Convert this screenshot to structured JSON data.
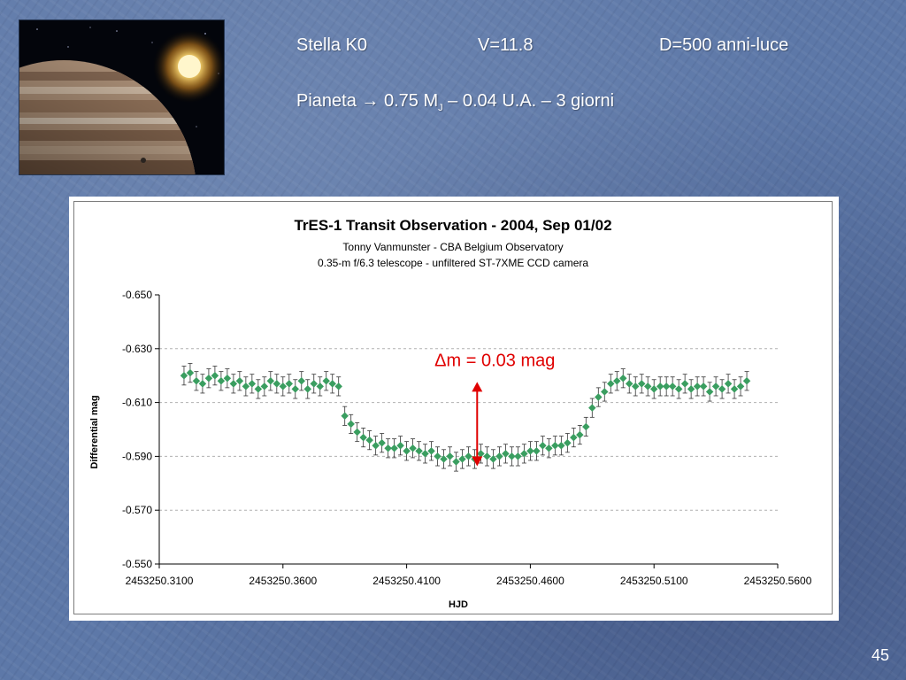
{
  "slide": {
    "star_label": "Stella K0",
    "magnitude_label": "V=11.8",
    "distance_label": "D=500 anni-luce",
    "planet_prefix": "Pianeta",
    "arrow_glyph": "→",
    "planet_mass": "0.75 M",
    "planet_mass_sub": "J",
    "planet_rest": " – 0.04 U.A. – 3 giorni",
    "page_number": "45"
  },
  "chart_data": {
    "type": "scatter",
    "title": "TrES-1 Transit Observation - 2004, Sep 01/02",
    "subtitle_1": "Tonny Vanmunster - CBA Belgium Observatory",
    "subtitle_2": "0.35-m f/6.3 telescope - unfiltered ST-7XME CCD camera",
    "xlabel": "HJD",
    "ylabel": "Differential mag",
    "xlim": [
      2453250.31,
      2453250.56
    ],
    "ylim": [
      -0.65,
      -0.55
    ],
    "y_reversed": true,
    "xticks": [
      "2453250.3100",
      "2453250.3600",
      "2453250.4100",
      "2453250.4600",
      "2453250.5100",
      "2453250.5600"
    ],
    "yticks": [
      "-0.650",
      "-0.630",
      "-0.610",
      "-0.590",
      "-0.570",
      "-0.550"
    ],
    "grid": "horizontal dashed",
    "annotation": {
      "text": "Δm = 0.03 mag",
      "color": "#e00000",
      "arrow_from": -0.617,
      "arrow_to": -0.587,
      "x": 2453250.4385
    },
    "colors": {
      "markers": "#3a9e60",
      "error_bars": "#333333",
      "grid": "#b0b0b0"
    },
    "series": [
      {
        "x": [
          2453250.32,
          2453250.3225,
          2453250.325,
          2453250.3275,
          2453250.33,
          2453250.3325,
          2453250.335,
          2453250.3375,
          2453250.34,
          2453250.3425,
          2453250.345,
          2453250.3475,
          2453250.35,
          2453250.3525,
          2453250.355,
          2453250.3575,
          2453250.36,
          2453250.3625,
          2453250.365,
          2453250.3675,
          2453250.37,
          2453250.3725,
          2453250.375,
          2453250.3775,
          2453250.38,
          2453250.3825,
          2453250.385,
          2453250.3875,
          2453250.39,
          2453250.3925,
          2453250.395,
          2453250.3975,
          2453250.4,
          2453250.4025,
          2453250.405,
          2453250.4075,
          2453250.41,
          2453250.4125,
          2453250.415,
          2453250.4175,
          2453250.42,
          2453250.4225,
          2453250.425,
          2453250.4275,
          2453250.43,
          2453250.4325,
          2453250.435,
          2453250.4375,
          2453250.44,
          2453250.4425,
          2453250.445,
          2453250.4475,
          2453250.45,
          2453250.4525,
          2453250.455,
          2453250.4575,
          2453250.46,
          2453250.4625,
          2453250.465,
          2453250.4675,
          2453250.47,
          2453250.4725,
          2453250.475,
          2453250.4775,
          2453250.48,
          2453250.4825,
          2453250.485,
          2453250.4875,
          2453250.49,
          2453250.4925,
          2453250.495,
          2453250.4975,
          2453250.5,
          2453250.5025,
          2453250.505,
          2453250.5075,
          2453250.51,
          2453250.5125,
          2453250.515,
          2453250.5175,
          2453250.52,
          2453250.5225,
          2453250.525,
          2453250.5275,
          2453250.53,
          2453250.5325,
          2453250.535,
          2453250.5375,
          2453250.54,
          2453250.5425,
          2453250.545,
          2453250.5475
        ],
        "y": [
          -0.62,
          -0.621,
          -0.618,
          -0.617,
          -0.619,
          -0.62,
          -0.618,
          -0.619,
          -0.617,
          -0.618,
          -0.616,
          -0.617,
          -0.615,
          -0.616,
          -0.618,
          -0.617,
          -0.616,
          -0.617,
          -0.615,
          -0.618,
          -0.615,
          -0.617,
          -0.616,
          -0.618,
          -0.617,
          -0.616,
          -0.605,
          -0.602,
          -0.599,
          -0.597,
          -0.596,
          -0.594,
          -0.595,
          -0.593,
          -0.593,
          -0.594,
          -0.592,
          -0.593,
          -0.592,
          -0.591,
          -0.592,
          -0.59,
          -0.589,
          -0.59,
          -0.588,
          -0.589,
          -0.59,
          -0.589,
          -0.591,
          -0.59,
          -0.589,
          -0.59,
          -0.591,
          -0.59,
          -0.59,
          -0.591,
          -0.592,
          -0.592,
          -0.594,
          -0.593,
          -0.594,
          -0.594,
          -0.595,
          -0.597,
          -0.598,
          -0.601,
          -0.608,
          -0.612,
          -0.614,
          -0.617,
          -0.618,
          -0.619,
          -0.617,
          -0.616,
          -0.617,
          -0.616,
          -0.615,
          -0.616,
          -0.616,
          -0.616,
          -0.615,
          -0.617,
          -0.615,
          -0.616,
          -0.616,
          -0.614,
          -0.616,
          -0.615,
          -0.617,
          -0.615,
          -0.616,
          -0.618
        ],
        "err": 0.0035
      }
    ]
  }
}
